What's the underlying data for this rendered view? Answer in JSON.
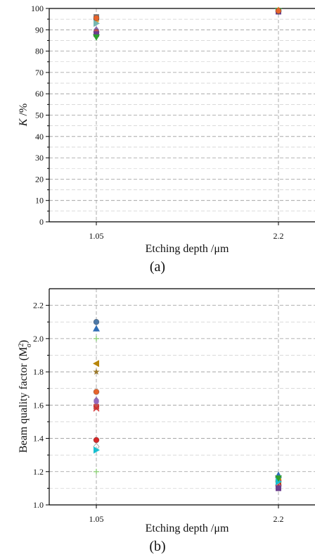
{
  "chart_data": [
    {
      "type": "scatter",
      "panel_label": "(a)",
      "xlabel": "Etching depth /μm",
      "ylabel_italic": "K",
      "ylabel_rest": " /%",
      "x_ticks": [
        "1.05",
        "2.2"
      ],
      "ylim": [
        0,
        100
      ],
      "y_ticks": [
        0,
        10,
        20,
        30,
        40,
        50,
        60,
        70,
        80,
        90,
        100
      ],
      "grid": true,
      "series": [
        {
          "color": "#7f7f7f",
          "marker": "square",
          "points": [
            [
              1.05,
              96
            ],
            [
              2.2,
              99
            ]
          ]
        },
        {
          "color": "#4e79a7",
          "marker": "circle",
          "points": [
            [
              1.05,
              95
            ],
            [
              2.2,
              98.8
            ]
          ]
        },
        {
          "color": "#e8a33c",
          "marker": "diamond",
          "points": [
            [
              1.05,
              94
            ],
            [
              2.2,
              99.2
            ]
          ]
        },
        {
          "color": "#76b7b2",
          "marker": "triangle-right",
          "points": [
            [
              1.05,
              93
            ],
            [
              2.2,
              98.9
            ]
          ]
        },
        {
          "color": "#8c6bb1",
          "marker": "diamond",
          "points": [
            [
              1.05,
              90
            ],
            [
              2.2,
              98.6
            ]
          ]
        },
        {
          "color": "#c0504d",
          "marker": "circle",
          "points": [
            [
              1.05,
              89
            ],
            [
              2.2,
              98.7
            ]
          ]
        },
        {
          "color": "#6b3e8e",
          "marker": "square",
          "points": [
            [
              1.05,
              88
            ],
            [
              2.2,
              98.5
            ]
          ]
        },
        {
          "color": "#2ca02c",
          "marker": "triangle-down",
          "points": [
            [
              1.05,
              86.5
            ],
            [
              2.2,
              98.8
            ]
          ]
        },
        {
          "color": "#e6642c",
          "marker": "circle",
          "points": [
            [
              1.05,
              95.5
            ],
            [
              2.2,
              98.9
            ]
          ]
        }
      ]
    },
    {
      "type": "scatter",
      "panel_label": "(b)",
      "xlabel": "Etching depth /μm",
      "ylabel": "Beam quality factor (M",
      "ylabel_sup": "2",
      "ylabel_sub": "σ",
      "ylabel_close": ")",
      "x_ticks": [
        "1.05",
        "2.2"
      ],
      "ylim": [
        1.0,
        2.3
      ],
      "y_ticks": [
        "1.0",
        "1.2",
        "1.4",
        "1.6",
        "1.8",
        "2.0",
        "2.2"
      ],
      "grid": true,
      "series": [
        {
          "color": "#4e79a7",
          "marker": "circle",
          "points": [
            [
              1.05,
              2.1
            ],
            [
              2.2,
              1.15
            ]
          ]
        },
        {
          "color": "#2f6db5",
          "marker": "triangle-up",
          "points": [
            [
              1.05,
              2.06
            ],
            [
              2.2,
              1.18
            ]
          ]
        },
        {
          "color": "#8fd17a",
          "marker": "plus",
          "points": [
            [
              1.05,
              2.0
            ],
            [
              2.2,
              1.16
            ]
          ]
        },
        {
          "color": "#b8860b",
          "marker": "triangle-left",
          "points": [
            [
              1.05,
              1.85
            ],
            [
              2.2,
              1.14
            ]
          ]
        },
        {
          "color": "#9c7b2f",
          "marker": "star",
          "points": [
            [
              1.05,
              1.8
            ],
            [
              2.2,
              1.13
            ]
          ]
        },
        {
          "color": "#e6642c",
          "marker": "circle",
          "points": [
            [
              1.05,
              1.68
            ],
            [
              2.2,
              1.12
            ]
          ]
        },
        {
          "color": "#8c6bb1",
          "marker": "diamond",
          "points": [
            [
              1.05,
              1.63
            ],
            [
              2.2,
              1.14
            ]
          ]
        },
        {
          "color": "#9467bd",
          "marker": "hexagon",
          "points": [
            [
              1.05,
              1.62
            ],
            [
              2.2,
              1.12
            ]
          ]
        },
        {
          "color": "#c0504d",
          "marker": "square",
          "points": [
            [
              1.05,
              1.59
            ],
            [
              2.2,
              1.11
            ]
          ]
        },
        {
          "color": "#d62728",
          "marker": "x",
          "points": [
            [
              1.05,
              1.58
            ],
            [
              2.2,
              1.13
            ]
          ]
        },
        {
          "color": "#d62728",
          "marker": "circle",
          "points": [
            [
              1.05,
              1.39
            ],
            [
              2.2,
              1.12
            ]
          ]
        },
        {
          "color": "#aaaaaa",
          "marker": "diamond-open",
          "points": [
            [
              1.05,
              1.35
            ],
            [
              2.2,
              1.11
            ]
          ]
        },
        {
          "color": "#17becf",
          "marker": "triangle-right",
          "points": [
            [
              1.05,
              1.33
            ],
            [
              2.2,
              1.14
            ]
          ]
        },
        {
          "color": "#8fd17a",
          "marker": "plus",
          "points": [
            [
              1.05,
              1.2
            ],
            [
              2.2,
              1.1
            ]
          ]
        },
        {
          "color": "#2ca02c",
          "marker": "triangle-down",
          "points": [
            [
              2.2,
              1.16
            ]
          ]
        },
        {
          "color": "#6b3e8e",
          "marker": "square",
          "points": [
            [
              2.2,
              1.1
            ]
          ]
        }
      ]
    }
  ]
}
